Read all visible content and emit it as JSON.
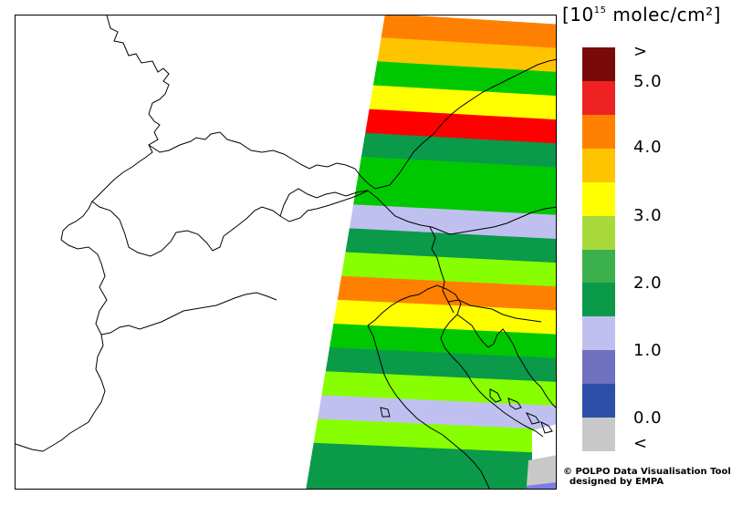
{
  "legend": {
    "unit_prefix": "[10",
    "unit_exponent": "15",
    "unit_suffix": " molec/cm²]",
    "bins": [
      {
        "color": "#7a0a0a"
      },
      {
        "color": "#ee2222"
      },
      {
        "color": "#ff8000"
      },
      {
        "color": "#ffc400"
      },
      {
        "color": "#ffff00"
      },
      {
        "color": "#a8d93a"
      },
      {
        "color": "#3cb04c"
      },
      {
        "color": "#0a9a4a"
      },
      {
        "color": "#c0c0f0"
      },
      {
        "color": "#7070c0"
      },
      {
        "color": "#2c4fa8"
      },
      {
        "color": "#c8c8c8"
      }
    ],
    "labels": {
      "above": ">",
      "v5": "5.0",
      "v4": "4.0",
      "v3": "3.0",
      "v2": "2.0",
      "v1": "1.0",
      "v0": "0.0",
      "below": "<"
    }
  },
  "swath": {
    "stripes": [
      {
        "color": "#ff8000"
      },
      {
        "color": "#ffc400"
      },
      {
        "color": "#00c800"
      },
      {
        "color": "#ffff00"
      },
      {
        "color": "#ff0000"
      },
      {
        "color": "#0a9a4a"
      },
      {
        "color": "#00c800"
      },
      {
        "color": "#00c800"
      },
      {
        "color": "#c0c0f0"
      },
      {
        "color": "#0a9a4a"
      },
      {
        "color": "#88ff00"
      },
      {
        "color": "#ff8000"
      },
      {
        "color": "#ffff00"
      },
      {
        "color": "#00c800"
      },
      {
        "color": "#0a9a4a"
      },
      {
        "color": "#88ff00"
      },
      {
        "color": "#c0c0f0"
      },
      {
        "color": "#88ff00"
      },
      {
        "color": "#0a9a4a"
      },
      {
        "color": "#0a9a4a"
      }
    ]
  },
  "credit": {
    "line1": "© POLPO Data Visualisation Tool",
    "line2": "designed by EMPA"
  }
}
